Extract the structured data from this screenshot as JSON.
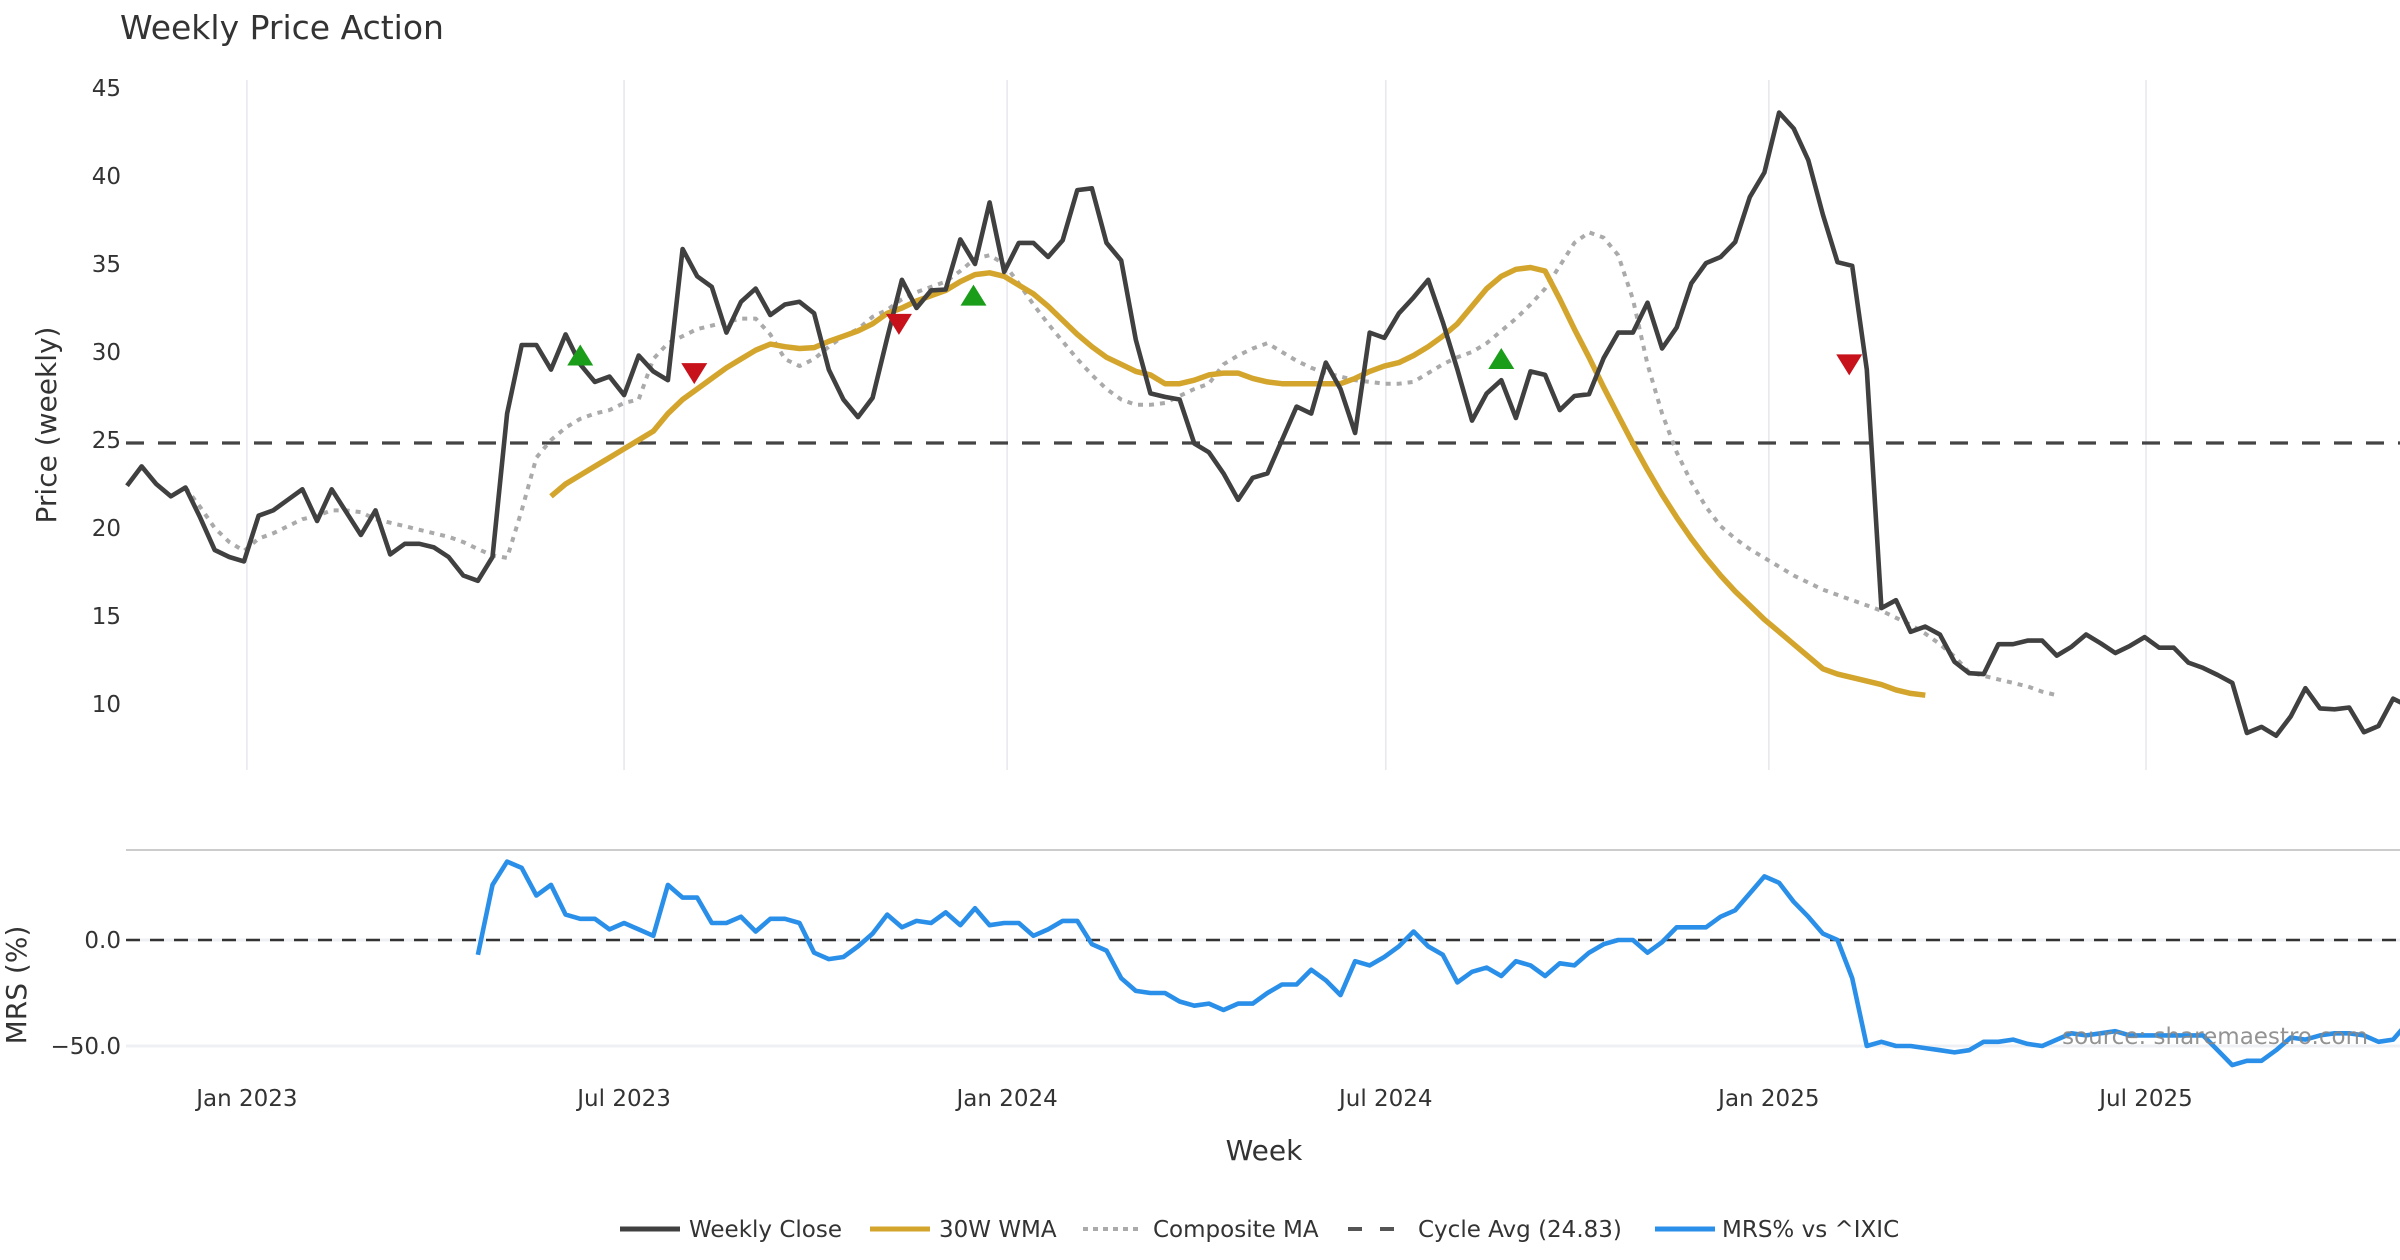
{
  "chart_data": {
    "type": "line",
    "title": "Weekly Price Action",
    "xlabel": "Week",
    "x_unit": "week index",
    "x_ticks": [
      {
        "label": "Jan 2023",
        "week": 8.2
      },
      {
        "label": "Jul 2023",
        "week": 34.0
      },
      {
        "label": "Jan 2024",
        "week": 60.2
      },
      {
        "label": "Jul 2024",
        "week": 86.1
      },
      {
        "label": "Jan 2025",
        "week": 112.3
      },
      {
        "label": "Jul 2025",
        "week": 138.1
      }
    ],
    "x_range": [
      0,
      155.5
    ],
    "price_panel": {
      "ylabel": "Price (weekly)",
      "ylim": [
        6.2,
        45.4
      ],
      "y_ticks": [
        10,
        15,
        20,
        25,
        30,
        35,
        40,
        45
      ],
      "grid": "vertical",
      "cycle_avg": 24.83,
      "series": [
        {
          "name": "Weekly Close",
          "color": "#404040",
          "style": "solid",
          "start": 0,
          "values": [
            22.4,
            23.5,
            22.5,
            21.8,
            22.3,
            20.6,
            18.75,
            18.35,
            18.1,
            20.7,
            21.0,
            21.6,
            22.2,
            20.4,
            22.2,
            20.9,
            19.6,
            21.0,
            18.5,
            19.1,
            19.1,
            18.9,
            18.35,
            17.3,
            17.0,
            18.35,
            26.5,
            30.4,
            30.4,
            29.0,
            31.0,
            29.3,
            28.3,
            28.6,
            27.55,
            29.8,
            28.9,
            28.4,
            35.85,
            34.3,
            33.7,
            31.1,
            32.85,
            33.6,
            32.1,
            32.7,
            32.85,
            32.2,
            29.0,
            27.3,
            26.3,
            27.4,
            30.8,
            34.1,
            32.5,
            33.5,
            33.55,
            36.4,
            35.0,
            38.5,
            34.55,
            36.2,
            36.2,
            35.4,
            36.35,
            39.2,
            39.3,
            36.2,
            35.2,
            30.7,
            27.65,
            27.45,
            27.3,
            24.8,
            24.3,
            23.1,
            21.6,
            22.85,
            23.1,
            25.0,
            26.9,
            26.5,
            29.4,
            27.9,
            25.4,
            31.1,
            30.8,
            32.2,
            33.1,
            34.1,
            31.7,
            29.0,
            26.1,
            27.65,
            28.4,
            26.25,
            28.9,
            28.7,
            26.7,
            27.5,
            27.6,
            29.65,
            31.1,
            31.1,
            32.8,
            30.2,
            31.4,
            33.9,
            35.05,
            35.4,
            36.25,
            38.8,
            40.2,
            43.6,
            42.7,
            40.9,
            37.8,
            35.1,
            34.9,
            29.0,
            15.45,
            15.9,
            14.1,
            14.4,
            13.95,
            12.4,
            11.75,
            11.7,
            13.4,
            13.4,
            13.6,
            13.6,
            12.75,
            13.25,
            13.95,
            13.45,
            12.9,
            13.3,
            13.8,
            13.2,
            13.2,
            12.35,
            12.05,
            11.65,
            11.2,
            8.35,
            8.7,
            8.2,
            9.3,
            10.9,
            9.75,
            9.7,
            9.8,
            8.4,
            8.75,
            10.3,
            9.9
          ]
        },
        {
          "name": "30W WMA",
          "color": "#D4A52C",
          "style": "solid",
          "start": 29,
          "values": [
            21.8,
            22.5,
            23.0,
            23.5,
            24.0,
            24.5,
            25.0,
            25.5,
            26.5,
            27.3,
            27.9,
            28.5,
            29.1,
            29.6,
            30.1,
            30.45,
            30.3,
            30.2,
            30.25,
            30.6,
            30.9,
            31.2,
            31.6,
            32.2,
            32.5,
            32.9,
            33.2,
            33.5,
            34.0,
            34.4,
            34.5,
            34.3,
            33.8,
            33.3,
            32.6,
            31.8,
            31.0,
            30.3,
            29.7,
            29.3,
            28.9,
            28.7,
            28.2,
            28.2,
            28.4,
            28.7,
            28.8,
            28.8,
            28.5,
            28.3,
            28.2,
            28.2,
            28.2,
            28.2,
            28.2,
            28.5,
            28.9,
            29.2,
            29.4,
            29.8,
            30.3,
            30.9,
            31.6,
            32.6,
            33.6,
            34.3,
            34.7,
            34.8,
            34.6,
            33.0,
            31.3,
            29.7,
            28.0,
            26.4,
            24.8,
            23.3,
            21.9,
            20.6,
            19.4,
            18.3,
            17.3,
            16.4,
            15.6,
            14.8,
            14.1,
            13.4,
            12.7,
            12.0,
            11.7,
            11.5,
            11.3,
            11.1,
            10.8,
            10.6,
            10.5
          ]
        },
        {
          "name": "Composite MA",
          "color": "#AAAAAA",
          "style": "dotted",
          "start": 4,
          "values": [
            22.3,
            21.2,
            20.0,
            19.2,
            18.7,
            19.4,
            19.7,
            20.1,
            20.5,
            20.7,
            21.0,
            21.0,
            20.9,
            20.5,
            20.3,
            20.1,
            19.9,
            19.7,
            19.5,
            19.2,
            18.8,
            18.45,
            18.3,
            21.0,
            24.0,
            25.0,
            25.7,
            26.2,
            26.5,
            26.7,
            27.1,
            27.3,
            29.6,
            30.5,
            30.9,
            31.3,
            31.5,
            31.7,
            31.9,
            31.9,
            31.0,
            29.6,
            29.2,
            29.6,
            30.3,
            30.9,
            31.3,
            32.0,
            32.4,
            33.0,
            33.4,
            33.7,
            34.0,
            34.6,
            35.3,
            35.5,
            35.0,
            33.9,
            32.7,
            31.6,
            30.6,
            29.6,
            28.7,
            27.9,
            27.3,
            27.0,
            27.0,
            27.1,
            27.5,
            27.9,
            28.2,
            29.3,
            29.8,
            30.2,
            30.5,
            30.0,
            29.5,
            29.1,
            28.8,
            28.6,
            28.4,
            28.3,
            28.2,
            28.2,
            28.3,
            28.8,
            29.3,
            29.7,
            30.0,
            30.5,
            31.2,
            31.9,
            32.7,
            33.6,
            34.9,
            36.2,
            36.8,
            36.5,
            35.5,
            33.0,
            29.3,
            26.5,
            24.3,
            22.6,
            21.2,
            20.1,
            19.4,
            18.8,
            18.3,
            17.8,
            17.3,
            16.9,
            16.5,
            16.2,
            15.9,
            15.6,
            15.3,
            14.9,
            14.5,
            14.0,
            13.4,
            12.7,
            11.8,
            11.6,
            11.4,
            11.2,
            11.0,
            10.7,
            10.5
          ]
        }
      ],
      "signals": [
        {
          "type": "buy",
          "week": 31,
          "value": 29.8,
          "color": "#1A9E1A"
        },
        {
          "type": "sell",
          "week": 38.8,
          "value": 28.8,
          "color": "#C8121B"
        },
        {
          "type": "buy",
          "week": 57.9,
          "value": 33.2,
          "color": "#1A9E1A"
        },
        {
          "type": "sell",
          "week": 52.8,
          "value": 31.6,
          "color": "#C8121B"
        },
        {
          "type": "buy",
          "week": 94,
          "value": 29.6,
          "color": "#1A9E1A"
        },
        {
          "type": "sell",
          "week": 117.8,
          "value": 29.3,
          "color": "#C8121B"
        }
      ]
    },
    "mrs_panel": {
      "ylabel": "MRS (%)",
      "ylim": [
        -60,
        42
      ],
      "y_ticks": [
        {
          "value": 0,
          "label": "0.0"
        },
        {
          "value": -50,
          "label": "−50.0"
        }
      ],
      "zero_line": 0,
      "series": [
        {
          "name": "MRS% vs ^IXIC",
          "color": "#2A8FE8",
          "style": "solid",
          "start": 24,
          "values": [
            -7,
            26,
            37,
            34,
            21,
            26,
            12,
            10,
            10,
            5,
            8,
            5,
            2,
            26,
            20,
            20,
            8,
            8,
            11,
            4,
            10,
            10,
            8,
            -6,
            -9,
            -8,
            -3,
            3,
            12,
            6,
            9,
            8,
            13,
            7,
            15,
            7,
            8,
            8,
            2,
            5,
            9,
            9,
            -2,
            -5,
            -18,
            -24,
            -25,
            -25,
            -29,
            -31,
            -30,
            -33,
            -30,
            -30,
            -25,
            -21,
            -21,
            -14,
            -19,
            -26,
            -10,
            -12,
            -8,
            -3,
            4,
            -3,
            -7,
            -20,
            -15,
            -13,
            -17,
            -10,
            -12,
            -17,
            -11,
            -12,
            -6,
            -2,
            0,
            0,
            -6,
            -1,
            6,
            6,
            6,
            11,
            14,
            22,
            30,
            27,
            18,
            11,
            3,
            0,
            -18,
            -50,
            -48,
            -50,
            -50,
            -51,
            -52,
            -53,
            -52,
            -48,
            -48,
            -47,
            -49,
            -50,
            -47,
            -44,
            -45,
            -44,
            -43,
            -45,
            -45,
            -45,
            -45,
            -45,
            -45,
            -52,
            -59,
            -57,
            -57,
            -52,
            -46,
            -47,
            -45,
            -44,
            -44,
            -45,
            -48,
            -47,
            -39,
            -40
          ]
        }
      ]
    },
    "legend": {
      "placement": "bottom-center",
      "entries": [
        "Weekly Close",
        "30W WMA",
        "Composite MA",
        "Cycle Avg (24.83)",
        "MRS% vs ^IXIC"
      ]
    },
    "source": "source: sharemaestro.com"
  }
}
